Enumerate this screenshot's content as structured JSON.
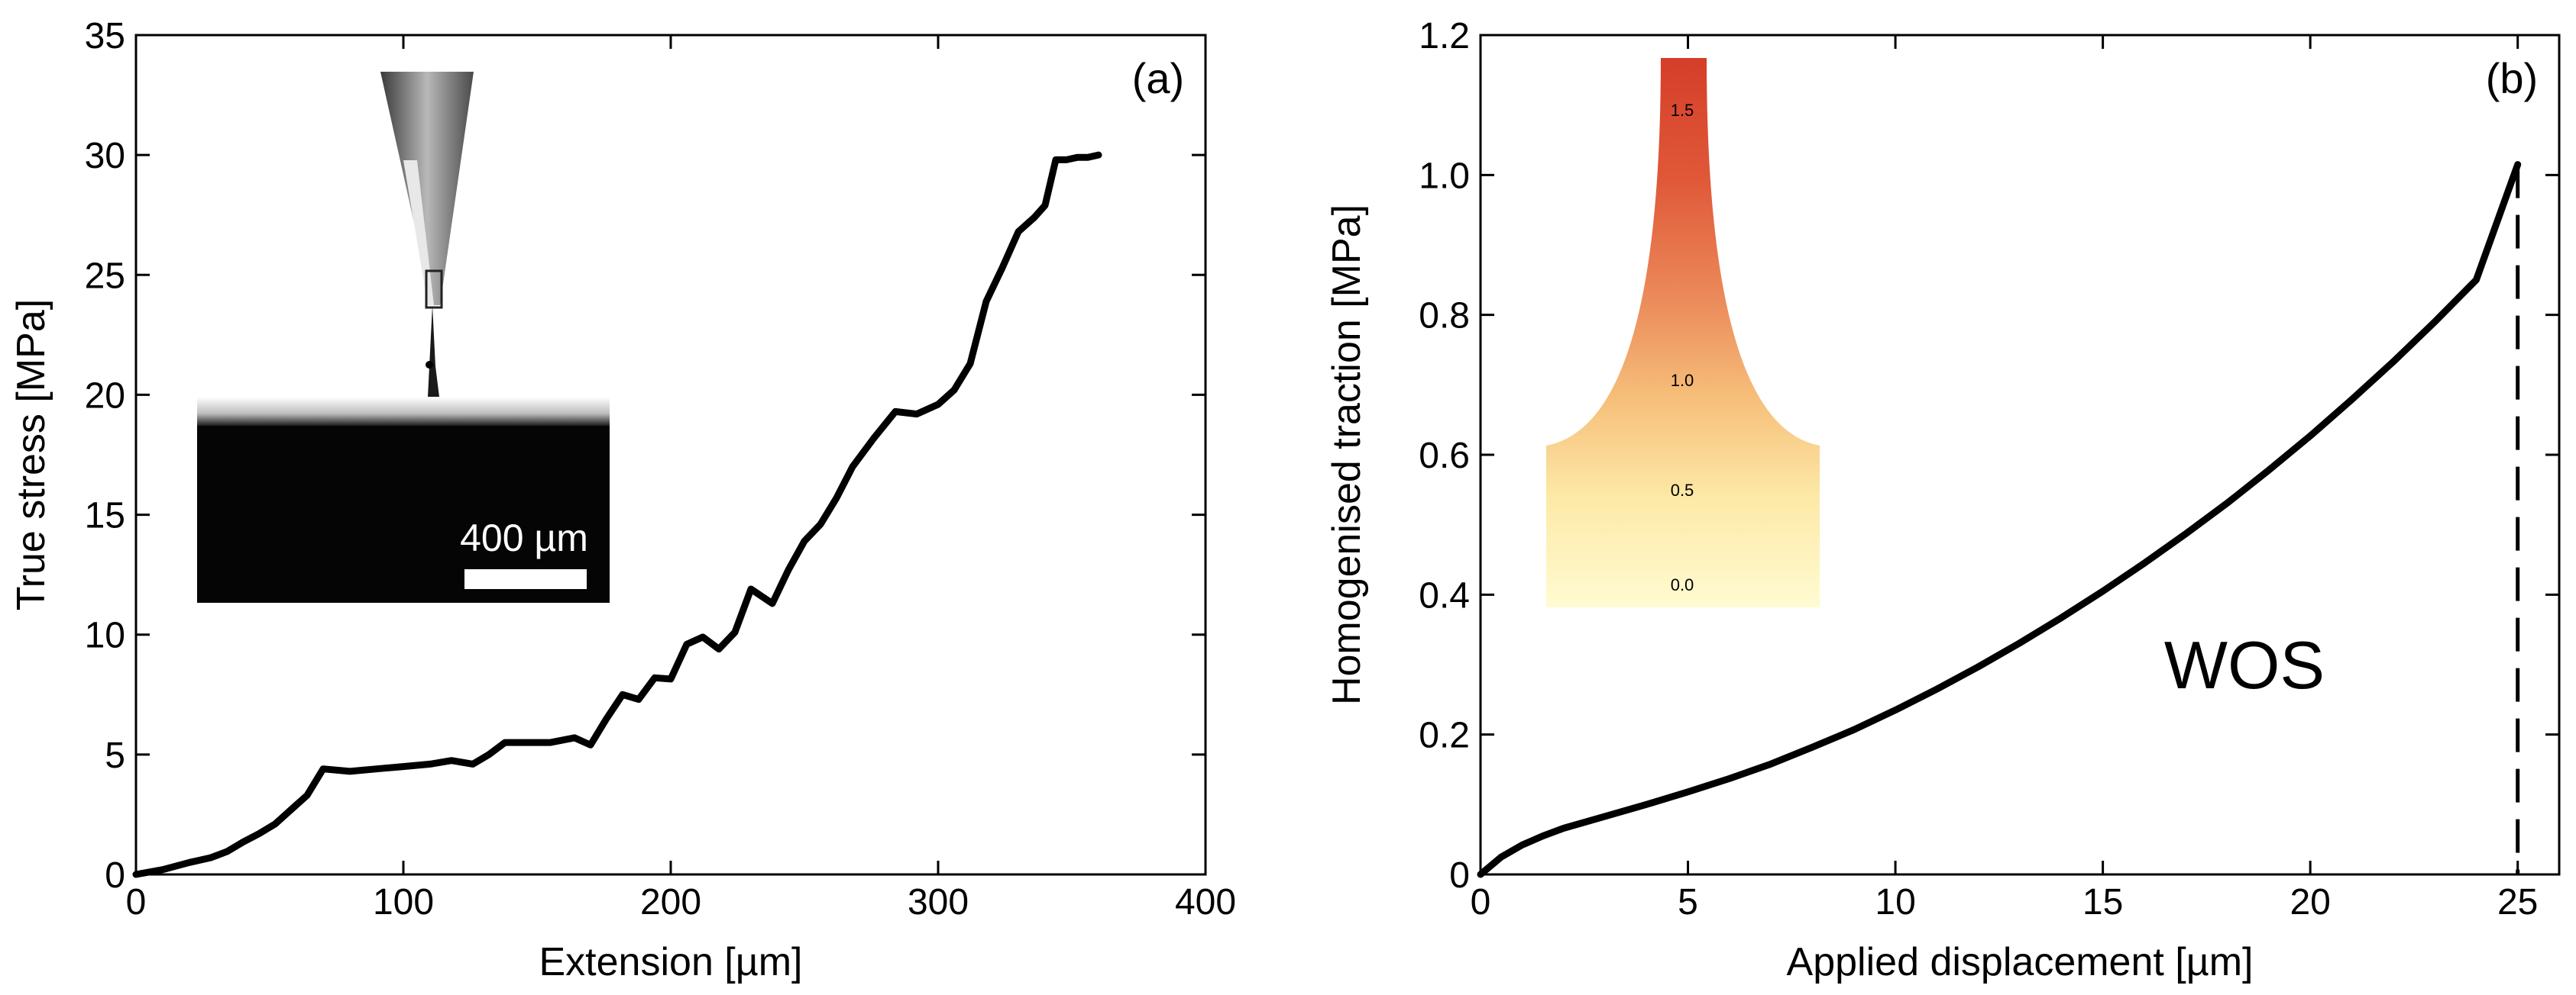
{
  "chart_data": [
    {
      "type": "line",
      "panel_label": "(a)",
      "xlabel": "Extension [µm]",
      "ylabel": "True stress [MPa]",
      "xlim": [
        0,
        400
      ],
      "ylim": [
        0,
        35
      ],
      "xticks": [
        0,
        100,
        200,
        300,
        400
      ],
      "yticks": [
        0,
        5,
        10,
        15,
        20,
        25,
        30,
        35
      ],
      "grid": false,
      "series": [
        {
          "x": [
            0,
            10,
            20,
            28,
            34,
            40,
            46,
            52,
            58,
            64,
            70,
            80,
            90,
            100,
            110,
            118,
            126,
            132,
            138,
            144,
            155,
            164,
            170,
            176,
            182,
            188,
            194,
            200,
            206,
            212,
            218,
            224,
            230,
            238,
            244,
            250,
            256,
            262,
            268,
            276,
            284,
            292,
            300,
            306,
            312,
            318,
            324,
            330,
            336,
            340,
            344,
            348,
            352,
            356,
            360
          ],
          "y": [
            0,
            0.2,
            0.5,
            0.7,
            0.95,
            1.35,
            1.7,
            2.1,
            2.7,
            3.3,
            4.4,
            4.3,
            4.4,
            4.5,
            4.6,
            4.75,
            4.6,
            5.0,
            5.5,
            5.5,
            5.5,
            5.7,
            5.4,
            6.5,
            7.5,
            7.3,
            8.2,
            8.15,
            9.6,
            9.9,
            9.4,
            10.1,
            11.9,
            11.3,
            12.7,
            13.9,
            14.6,
            15.7,
            17.0,
            18.2,
            19.3,
            19.2,
            19.6,
            20.2,
            21.3,
            23.9,
            25.3,
            26.8,
            27.4,
            27.9,
            29.8,
            29.8,
            29.9,
            29.9,
            30
          ]
        }
      ],
      "inset": {
        "content": "grayscale micrograph of a fibre pulled from a substrate by a needle",
        "scale_bar_label": "400 µm"
      }
    },
    {
      "type": "line",
      "panel_label": "(b)",
      "xlabel": "Applied displacement [µm]",
      "ylabel": "Homogenised traction [MPa]",
      "xlim": [
        0,
        26
      ],
      "ylim": [
        0,
        1.2
      ],
      "xticks": [
        0,
        5,
        10,
        15,
        20,
        25
      ],
      "ytick_labels": [
        "0",
        "0.2",
        "0.4",
        "0.6",
        "0.8",
        "1.0",
        "1.2"
      ],
      "grid": false,
      "annotation": "WOS",
      "series": [
        {
          "x": [
            0,
            0.5,
            1,
            1.5,
            2,
            3,
            4,
            5,
            6,
            7,
            8,
            9,
            10,
            11,
            12,
            13,
            14,
            15,
            16,
            17,
            18,
            19,
            20,
            21,
            22,
            23,
            24,
            25
          ],
          "y": [
            0,
            0.025,
            0.042,
            0.055,
            0.066,
            0.083,
            0.1,
            0.118,
            0.137,
            0.158,
            0.182,
            0.207,
            0.235,
            0.265,
            0.297,
            0.331,
            0.367,
            0.405,
            0.445,
            0.487,
            0.531,
            0.578,
            0.627,
            0.679,
            0.733,
            0.79,
            0.85,
            1.015
          ]
        }
      ],
      "vertical_line": {
        "x": 25,
        "style": "dashed"
      },
      "inset": {
        "content": "colour contour map of the fibre-substrate geometry",
        "colormap": [
          "#fffbd2",
          "#fde9a7",
          "#f6bf7a",
          "#ec8d5c",
          "#e05838",
          "#d53e2a"
        ],
        "contour_labels": [
          "1.5",
          "1.0",
          "0.5",
          "0.0"
        ]
      }
    }
  ]
}
